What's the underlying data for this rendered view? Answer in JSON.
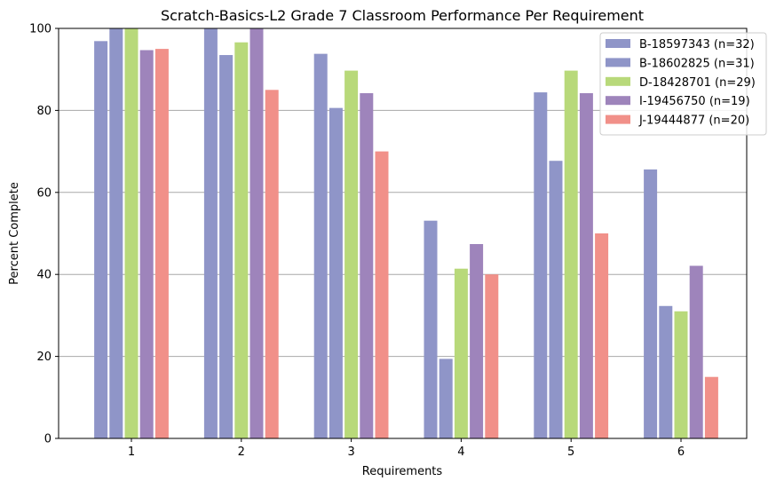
{
  "chart_data": {
    "type": "bar",
    "title": "Scratch-Basics-L2 Grade 7 Classroom Performance Per Requirement",
    "xlabel": "Requirements",
    "ylabel": "Percent Complete",
    "categories": [
      "1",
      "2",
      "3",
      "4",
      "5",
      "6"
    ],
    "ylim": [
      0,
      100
    ],
    "yticks": [
      0,
      20,
      40,
      60,
      80,
      100
    ],
    "grid": "horizontal",
    "legend_position": "top-right",
    "series": [
      {
        "name": "B-18597343 (n=32)",
        "color": "#8f95c8",
        "values": [
          96.9,
          100,
          93.8,
          53.1,
          84.4,
          65.6
        ]
      },
      {
        "name": "B-18602825 (n=31)",
        "color": "#8f95c8",
        "values": [
          100,
          93.5,
          80.6,
          19.4,
          67.7,
          32.3
        ]
      },
      {
        "name": "D-18428701 (n=29)",
        "color": "#b8d97a",
        "values": [
          100,
          96.6,
          89.7,
          41.4,
          89.7,
          31.0
        ]
      },
      {
        "name": "I-19456750 (n=19)",
        "color": "#9e84bb",
        "values": [
          94.7,
          100,
          84.2,
          47.4,
          84.2,
          42.1
        ]
      },
      {
        "name": "J-19444877 (n=20)",
        "color": "#f19089",
        "values": [
          95,
          85,
          70,
          40,
          50,
          15
        ]
      }
    ]
  }
}
